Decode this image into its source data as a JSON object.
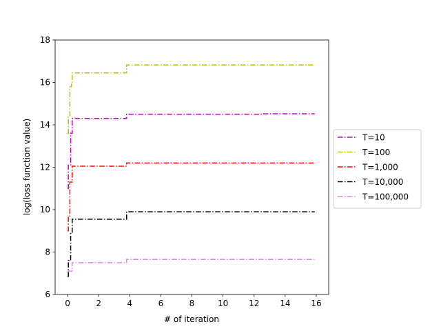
{
  "chart_data": {
    "type": "line",
    "xlabel": "# of iteration",
    "ylabel": "log(loss function value)",
    "xlim": [
      -0.8,
      16.8
    ],
    "ylim": [
      6,
      18
    ],
    "xticks": [
      0,
      2,
      4,
      6,
      8,
      10,
      12,
      14,
      16
    ],
    "yticks": [
      6,
      8,
      10,
      12,
      14,
      16,
      18
    ],
    "grid": false,
    "legend_position": "right-outside",
    "series": [
      {
        "name": "T=10",
        "color": "#bf00bf",
        "linestyle": "dashdot",
        "steps": [
          {
            "x": 0.0,
            "y": 11.0
          },
          {
            "x": 0.05,
            "y": 12.1
          },
          {
            "x": 0.2,
            "y": 13.6
          },
          {
            "x": 0.3,
            "y": 14.3
          },
          {
            "x": 3.8,
            "y": 14.5
          },
          {
            "x": 12.5,
            "y": 14.52
          },
          {
            "x": 15.9,
            "y": 14.52
          }
        ]
      },
      {
        "name": "T=100",
        "color": "#bfbf00",
        "linestyle": "dashdot",
        "steps": [
          {
            "x": 0.0,
            "y": 13.6
          },
          {
            "x": 0.05,
            "y": 14.4
          },
          {
            "x": 0.15,
            "y": 15.8
          },
          {
            "x": 0.25,
            "y": 16.0
          },
          {
            "x": 0.3,
            "y": 16.45
          },
          {
            "x": 3.8,
            "y": 16.82
          },
          {
            "x": 15.9,
            "y": 16.82
          }
        ]
      },
      {
        "name": "T=1,000",
        "color": "#ff0000",
        "linestyle": "dashdot",
        "steps": [
          {
            "x": 0.0,
            "y": 9.0
          },
          {
            "x": 0.05,
            "y": 9.7
          },
          {
            "x": 0.15,
            "y": 11.3
          },
          {
            "x": 0.3,
            "y": 12.05
          },
          {
            "x": 3.8,
            "y": 12.2
          },
          {
            "x": 15.9,
            "y": 12.2
          }
        ]
      },
      {
        "name": "T=10,000",
        "color": "#000000",
        "linestyle": "dashdot",
        "steps": [
          {
            "x": 0.0,
            "y": 6.85
          },
          {
            "x": 0.05,
            "y": 7.6
          },
          {
            "x": 0.2,
            "y": 8.9
          },
          {
            "x": 0.3,
            "y": 9.55
          },
          {
            "x": 3.8,
            "y": 9.9
          },
          {
            "x": 15.9,
            "y": 9.9
          }
        ]
      },
      {
        "name": "T=100,000",
        "color": "#dd88dd",
        "linestyle": "dashdot",
        "steps": [
          {
            "x": 0.0,
            "y": 7.1
          },
          {
            "x": 0.3,
            "y": 7.5
          },
          {
            "x": 3.8,
            "y": 7.65
          },
          {
            "x": 15.9,
            "y": 7.65
          }
        ]
      }
    ]
  }
}
